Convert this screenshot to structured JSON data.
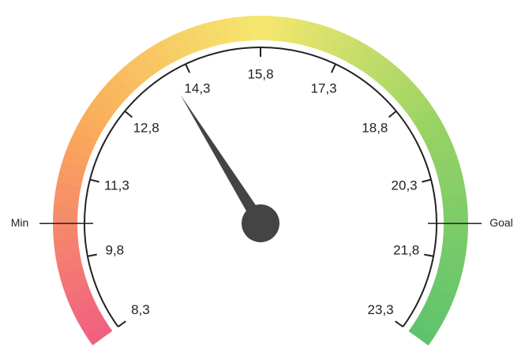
{
  "chart_data": {
    "type": "gauge",
    "value": 13.9,
    "ylim": [
      8.3,
      23.3
    ],
    "yticks": [
      {
        "value": 8.3,
        "label": "8,3"
      },
      {
        "value": 9.8,
        "label": "9,8"
      },
      {
        "value": 11.3,
        "label": "11,3"
      },
      {
        "value": 12.8,
        "label": "12,8"
      },
      {
        "value": 14.3,
        "label": "14,3"
      },
      {
        "value": 15.8,
        "label": "15,8"
      },
      {
        "value": 17.3,
        "label": "17,3"
      },
      {
        "value": 18.8,
        "label": "18,8"
      },
      {
        "value": 20.3,
        "label": "20,3"
      },
      {
        "value": 21.8,
        "label": "21,8"
      },
      {
        "value": 23.3,
        "label": "23,3"
      }
    ],
    "markers": [
      {
        "label": "Min",
        "value": 10.44
      },
      {
        "label": "Goal",
        "value": 21.16
      }
    ],
    "needle_color": "#444444"
  }
}
